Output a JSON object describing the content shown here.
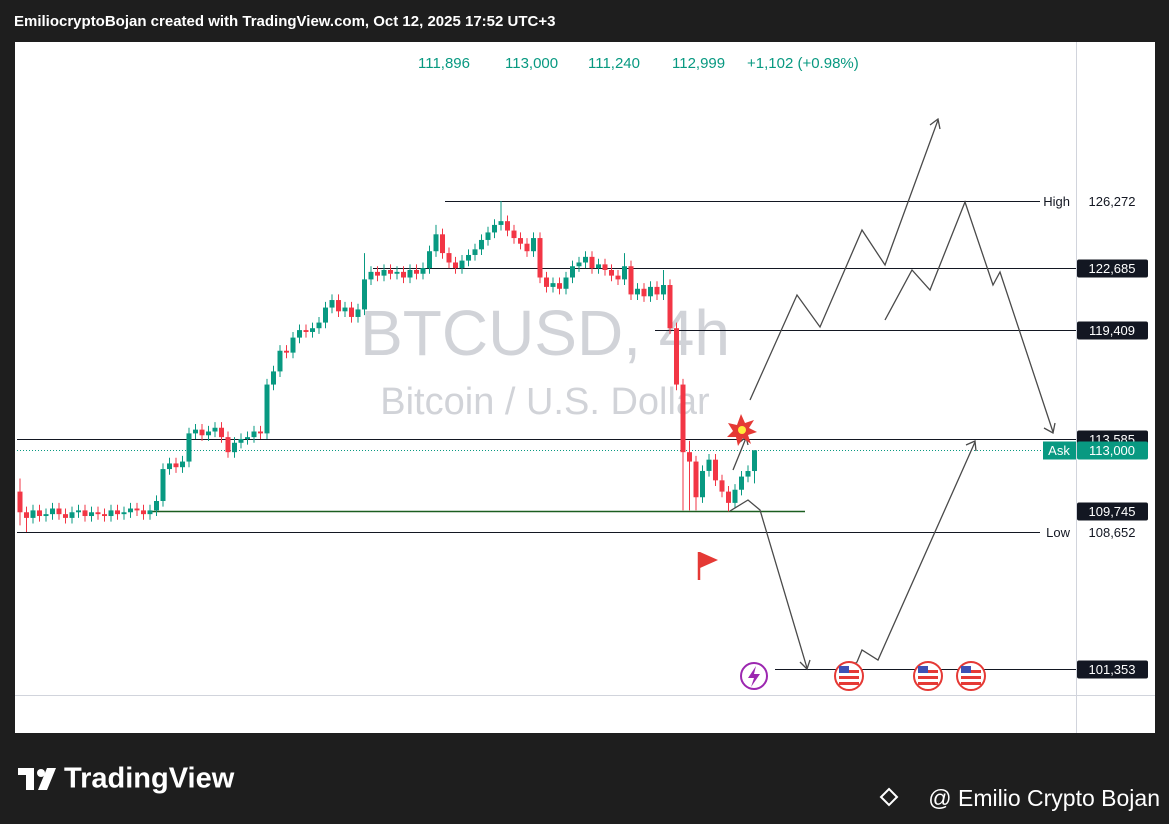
{
  "chart_data": {
    "type": "candlestick",
    "attribution": "EmiliocryptoBojan created with TradingView.com, Oct 12, 2025 17:52 UTC+3",
    "symbol": "BTCUSD, 4h",
    "description": "Bitcoin / U.S. Dollar",
    "header_values": [
      "111,896",
      "113,000",
      "111,240",
      "112,999",
      "+1,102 (+0.98%)"
    ],
    "up_color": "#089981",
    "down_color": "#f23645",
    "ylim": [
      99970,
      134740
    ],
    "candles": [
      [
        110800,
        111500,
        109000,
        109700
      ],
      [
        109700,
        110000,
        108652,
        109400
      ],
      [
        109400,
        110100,
        109100,
        109800
      ],
      [
        109800,
        110100,
        109200,
        109500
      ],
      [
        109500,
        109900,
        109200,
        109600
      ],
      [
        109600,
        110200,
        109300,
        109900
      ],
      [
        109900,
        110200,
        109300,
        109600
      ],
      [
        109600,
        109900,
        109100,
        109400
      ],
      [
        109400,
        110000,
        109100,
        109700
      ],
      [
        109700,
        110100,
        109400,
        109800
      ],
      [
        109800,
        110100,
        109200,
        109500
      ],
      [
        109500,
        110000,
        109200,
        109700
      ],
      [
        109700,
        110000,
        109300,
        109600
      ],
      [
        109600,
        109900,
        109200,
        109500
      ],
      [
        109500,
        110100,
        109200,
        109800
      ],
      [
        109800,
        110100,
        109300,
        109600
      ],
      [
        109600,
        110000,
        109300,
        109700
      ],
      [
        109700,
        110200,
        109400,
        109900
      ],
      [
        109900,
        110200,
        109500,
        109800
      ],
      [
        109800,
        110100,
        109300,
        109600
      ],
      [
        109600,
        110100,
        109300,
        109800
      ],
      [
        109800,
        110600,
        109500,
        110300
      ],
      [
        110300,
        112300,
        110000,
        112000
      ],
      [
        112000,
        112600,
        111700,
        112300
      ],
      [
        112300,
        112600,
        111800,
        112100
      ],
      [
        112100,
        112700,
        111800,
        112400
      ],
      [
        112400,
        114200,
        112100,
        113900
      ],
      [
        113900,
        114400,
        113600,
        114100
      ],
      [
        114100,
        114400,
        113500,
        113800
      ],
      [
        113800,
        114300,
        113500,
        114000
      ],
      [
        114000,
        114500,
        113700,
        114200
      ],
      [
        114200,
        114500,
        113400,
        113700
      ],
      [
        113700,
        114000,
        112600,
        112900
      ],
      [
        112900,
        113700,
        112600,
        113400
      ],
      [
        113400,
        113900,
        113100,
        113600
      ],
      [
        113600,
        114000,
        113300,
        113700
      ],
      [
        113700,
        114300,
        113400,
        114000
      ],
      [
        114000,
        114300,
        113600,
        113900
      ],
      [
        113900,
        116800,
        113600,
        116500
      ],
      [
        116500,
        117500,
        116200,
        117200
      ],
      [
        117200,
        118600,
        116900,
        118300
      ],
      [
        118300,
        118600,
        117900,
        118200
      ],
      [
        118200,
        119300,
        117900,
        119000
      ],
      [
        119000,
        119700,
        118700,
        119400
      ],
      [
        119400,
        119700,
        119000,
        119300
      ],
      [
        119300,
        119800,
        119000,
        119500
      ],
      [
        119500,
        120100,
        119200,
        119800
      ],
      [
        119800,
        120900,
        119500,
        120600
      ],
      [
        120600,
        121300,
        120300,
        121000
      ],
      [
        121000,
        121300,
        120100,
        120400
      ],
      [
        120400,
        120900,
        120100,
        120600
      ],
      [
        120600,
        120900,
        119800,
        120100
      ],
      [
        120100,
        120800,
        119800,
        120500
      ],
      [
        120500,
        123500,
        120200,
        122100
      ],
      [
        122100,
        122800,
        121800,
        122500
      ],
      [
        122500,
        122800,
        122000,
        122300
      ],
      [
        122300,
        122900,
        122000,
        122600
      ],
      [
        122600,
        122900,
        122100,
        122400
      ],
      [
        122400,
        122800,
        122100,
        122500
      ],
      [
        122500,
        122800,
        121900,
        122200
      ],
      [
        122200,
        122900,
        121900,
        122600
      ],
      [
        122600,
        122900,
        122100,
        122400
      ],
      [
        122400,
        123000,
        122100,
        122700
      ],
      [
        122700,
        123900,
        122400,
        123600
      ],
      [
        123600,
        125000,
        123300,
        124500
      ],
      [
        124500,
        124800,
        123200,
        123500
      ],
      [
        123500,
        123800,
        122700,
        123000
      ],
      [
        123000,
        123300,
        122400,
        122700
      ],
      [
        122700,
        123400,
        122400,
        123100
      ],
      [
        123100,
        123700,
        122800,
        123400
      ],
      [
        123400,
        124000,
        123100,
        123700
      ],
      [
        123700,
        124500,
        123400,
        124200
      ],
      [
        124200,
        124900,
        123900,
        124600
      ],
      [
        124600,
        125300,
        124300,
        125000
      ],
      [
        125000,
        126272,
        124700,
        125200
      ],
      [
        125200,
        125500,
        124400,
        124700
      ],
      [
        124700,
        125000,
        124000,
        124300
      ],
      [
        124300,
        124600,
        123700,
        124000
      ],
      [
        124000,
        124300,
        123300,
        123600
      ],
      [
        123600,
        124600,
        123300,
        124300
      ],
      [
        124300,
        124600,
        121900,
        122200
      ],
      [
        122200,
        122500,
        121400,
        121700
      ],
      [
        121700,
        122200,
        121400,
        121900
      ],
      [
        121900,
        122200,
        121300,
        121600
      ],
      [
        121600,
        122500,
        121300,
        122200
      ],
      [
        122200,
        123100,
        121900,
        122800
      ],
      [
        122800,
        123300,
        122500,
        123000
      ],
      [
        123000,
        123600,
        122700,
        123300
      ],
      [
        123300,
        123600,
        122400,
        122700
      ],
      [
        122700,
        123200,
        122400,
        122900
      ],
      [
        122900,
        123200,
        122300,
        122600
      ],
      [
        122600,
        122900,
        122000,
        122300
      ],
      [
        122300,
        122600,
        121800,
        122100
      ],
      [
        122100,
        123500,
        121800,
        122800
      ],
      [
        122800,
        123100,
        121000,
        121300
      ],
      [
        121300,
        121900,
        121000,
        121600
      ],
      [
        121600,
        121900,
        120900,
        121200
      ],
      [
        121200,
        122000,
        120900,
        121700
      ],
      [
        121700,
        122000,
        121000,
        121300
      ],
      [
        121300,
        122600,
        121000,
        121800
      ],
      [
        121800,
        122100,
        119200,
        119500
      ],
      [
        119500,
        119800,
        116200,
        116500
      ],
      [
        116500,
        116800,
        109800,
        112900
      ],
      [
        112900,
        113500,
        109800,
        112400
      ],
      [
        112400,
        112700,
        109800,
        110500
      ],
      [
        110500,
        112200,
        110200,
        111900
      ],
      [
        111900,
        112800,
        111600,
        112500
      ],
      [
        112500,
        112800,
        111100,
        111400
      ],
      [
        111400,
        111700,
        110500,
        110800
      ],
      [
        110800,
        111100,
        109745,
        110200
      ],
      [
        110200,
        111200,
        109900,
        110900
      ],
      [
        110900,
        111900,
        110600,
        111600
      ],
      [
        111600,
        112200,
        111300,
        111896
      ],
      [
        111896,
        113000,
        111240,
        112999
      ]
    ],
    "levels": [
      {
        "value": 126272,
        "label": "126,272",
        "name": "High"
      },
      {
        "value": 122685,
        "label": "122,685"
      },
      {
        "value": 119409,
        "label": "119,409"
      },
      {
        "value": 113585,
        "label": "113,585"
      },
      {
        "value": 113000,
        "label": "113,000",
        "name": "Ask"
      },
      {
        "value": 109745,
        "label": "109,745"
      },
      {
        "value": 108652,
        "label": "108,652",
        "name": "Low"
      },
      {
        "value": 101353,
        "label": "101,353"
      }
    ],
    "footer": {
      "brand": "TradingView",
      "author": "@ Emilio Crypto Bojan"
    }
  }
}
